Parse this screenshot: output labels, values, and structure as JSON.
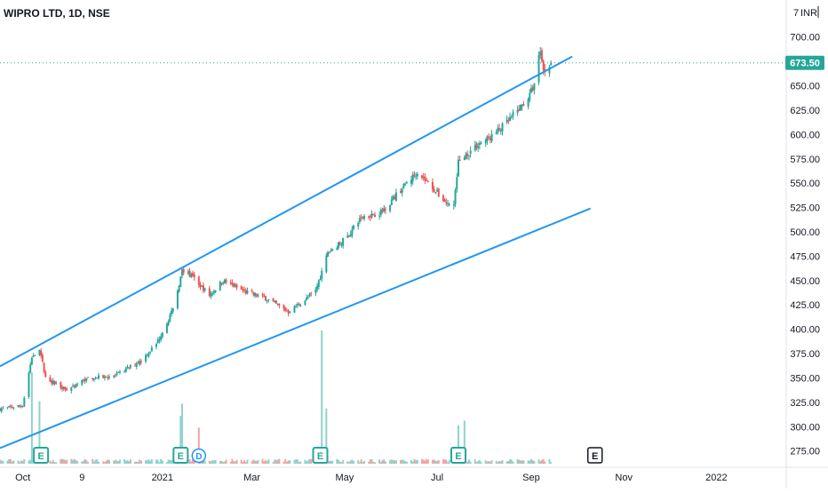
{
  "header": {
    "symbol_title": "WIPRO LTD, 1D, NSE"
  },
  "price_scale": {
    "currency_icon": "7",
    "currency_label": "INR",
    "last_price_label": "673.50"
  },
  "colors": {
    "up": "#26a69a",
    "down": "#ef5350",
    "vol_up": "#8fd3cb",
    "vol_down": "#f4a3a1",
    "trendline": "#2196f3",
    "last_price": "#26a69a",
    "grid": "#f0f3fa",
    "axis_text": "#131722",
    "event_badge": "#26a69a"
  },
  "events": [
    {
      "type": "earnings",
      "label": "E",
      "date": "2020-10-13",
      "style": "badge"
    },
    {
      "type": "earnings",
      "label": "E",
      "date": "2021-01-13",
      "style": "badge"
    },
    {
      "type": "dividend",
      "label": "D",
      "date": "2021-01-25",
      "style": "circle"
    },
    {
      "type": "earnings",
      "label": "E",
      "date": "2021-04-15",
      "style": "badge"
    },
    {
      "type": "earnings",
      "label": "E",
      "date": "2021-07-15",
      "style": "badge"
    },
    {
      "type": "earnings",
      "label": "E",
      "date": "2021-10-13",
      "style": "future"
    }
  ],
  "chart_data": {
    "type": "candlestick",
    "title": "WIPRO LTD, 1D, NSE",
    "ylim": [
      262,
      738
    ],
    "xlim": [
      "2020-09-16",
      "2022-02-16"
    ],
    "y_ticks": [
      275,
      300,
      325,
      350,
      375,
      400,
      425,
      450,
      475,
      500,
      525,
      550,
      575,
      600,
      625,
      650,
      675,
      700
    ],
    "y_tick_labels": [
      "275.00",
      "300.00",
      "325.00",
      "350.00",
      "375.00",
      "400.00",
      "425.00",
      "450.00",
      "475.00",
      "500.00",
      "525.00",
      "550.00",
      "575.00",
      "600.00",
      "625.00",
      "650.00",
      "",
      "700.00"
    ],
    "x_ticks": [
      {
        "label": "Oct",
        "date": "2020-10-01"
      },
      {
        "label": "9",
        "date": "2020-11-09"
      },
      {
        "label": "2021",
        "date": "2021-01-01"
      },
      {
        "label": "Mar",
        "date": "2021-03-01"
      },
      {
        "label": "May",
        "date": "2021-05-01"
      },
      {
        "label": "Jul",
        "date": "2021-07-01"
      },
      {
        "label": "Sep",
        "date": "2021-09-01"
      },
      {
        "label": "Nov",
        "date": "2021-11-01"
      },
      {
        "label": "2022",
        "date": "2022-01-01"
      }
    ],
    "last_price": 673.5,
    "grid": false,
    "price_anchors": [
      [
        "2020-09-16",
        318
      ],
      [
        "2020-10-01",
        322
      ],
      [
        "2020-10-07",
        372
      ],
      [
        "2020-10-12",
        380
      ],
      [
        "2020-10-16",
        350
      ],
      [
        "2020-10-30",
        338
      ],
      [
        "2020-11-13",
        350
      ],
      [
        "2020-12-01",
        352
      ],
      [
        "2020-12-18",
        368
      ],
      [
        "2020-12-28",
        385
      ],
      [
        "2021-01-08",
        420
      ],
      [
        "2021-01-14",
        460
      ],
      [
        "2021-01-20",
        455
      ],
      [
        "2021-02-01",
        435
      ],
      [
        "2021-02-10",
        450
      ],
      [
        "2021-02-25",
        438
      ],
      [
        "2021-03-10",
        432
      ],
      [
        "2021-03-25",
        418
      ],
      [
        "2021-04-05",
        430
      ],
      [
        "2021-04-12",
        440
      ],
      [
        "2021-04-20",
        478
      ],
      [
        "2021-05-03",
        495
      ],
      [
        "2021-05-12",
        515
      ],
      [
        "2021-05-25",
        520
      ],
      [
        "2021-06-08",
        545
      ],
      [
        "2021-06-18",
        562
      ],
      [
        "2021-06-28",
        545
      ],
      [
        "2021-07-08",
        528
      ],
      [
        "2021-07-12",
        528
      ],
      [
        "2021-07-15",
        572
      ],
      [
        "2021-07-28",
        590
      ],
      [
        "2021-08-06",
        598
      ],
      [
        "2021-08-16",
        612
      ],
      [
        "2021-08-25",
        628
      ],
      [
        "2021-08-31",
        640
      ],
      [
        "2021-09-03",
        652
      ],
      [
        "2021-09-07",
        688
      ],
      [
        "2021-09-09",
        665
      ],
      [
        "2021-09-14",
        673.5
      ]
    ],
    "volume_spikes": [
      [
        "2020-10-07",
        380
      ],
      [
        "2020-10-12",
        260
      ],
      [
        "2021-01-13",
        200
      ],
      [
        "2021-01-14",
        250
      ],
      [
        "2021-01-25",
        150
      ],
      [
        "2021-04-16",
        560
      ],
      [
        "2021-04-19",
        230
      ],
      [
        "2021-07-15",
        160
      ],
      [
        "2021-07-19",
        180
      ]
    ],
    "trendlines": [
      {
        "name": "upper",
        "from": [
          "2020-09-16",
          362
        ],
        "to": [
          "2021-09-28",
          680
        ]
      },
      {
        "name": "lower",
        "from": [
          "2020-09-16",
          278
        ],
        "to": [
          "2021-10-10",
          524
        ]
      }
    ]
  }
}
